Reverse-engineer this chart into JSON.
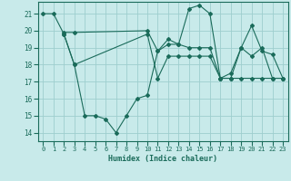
{
  "xlabel": "Humidex (Indice chaleur)",
  "xlim": [
    -0.5,
    23.5
  ],
  "ylim": [
    13.5,
    21.7
  ],
  "yticks": [
    14,
    15,
    16,
    17,
    18,
    19,
    20,
    21
  ],
  "xticks": [
    0,
    1,
    2,
    3,
    4,
    5,
    6,
    7,
    8,
    9,
    10,
    11,
    12,
    13,
    14,
    15,
    16,
    17,
    18,
    19,
    20,
    21,
    22,
    23
  ],
  "bg_color": "#c8eaea",
  "grid_color": "#9ecece",
  "line_color": "#1a6b5a",
  "lines": [
    {
      "x": [
        0,
        1,
        2,
        3,
        4,
        5,
        6,
        7,
        8,
        9,
        10,
        11,
        12,
        13,
        14,
        15,
        16,
        17,
        18,
        19,
        20,
        21,
        22,
        23
      ],
      "y": [
        21.0,
        21.0,
        19.8,
        18.0,
        15.0,
        15.0,
        14.8,
        14.0,
        15.0,
        16.0,
        16.2,
        18.8,
        19.2,
        19.2,
        21.3,
        21.5,
        21.0,
        17.2,
        17.2,
        19.0,
        18.5,
        19.0,
        17.2,
        17.2
      ]
    },
    {
      "x": [
        2,
        3,
        10,
        11,
        12,
        13,
        14,
        15,
        16,
        17,
        18,
        19,
        20,
        21,
        22,
        23
      ],
      "y": [
        19.9,
        19.9,
        20.0,
        18.8,
        19.5,
        19.2,
        19.0,
        19.0,
        19.0,
        17.2,
        17.5,
        19.0,
        20.3,
        18.8,
        18.6,
        17.2
      ]
    },
    {
      "x": [
        2,
        3,
        10,
        11,
        12,
        13,
        14,
        15,
        16,
        17,
        18,
        19,
        20,
        21,
        22,
        23
      ],
      "y": [
        19.8,
        18.0,
        19.8,
        17.2,
        18.5,
        18.5,
        18.5,
        18.5,
        18.5,
        17.2,
        17.2,
        17.2,
        17.2,
        17.2,
        17.2,
        17.2
      ]
    }
  ]
}
